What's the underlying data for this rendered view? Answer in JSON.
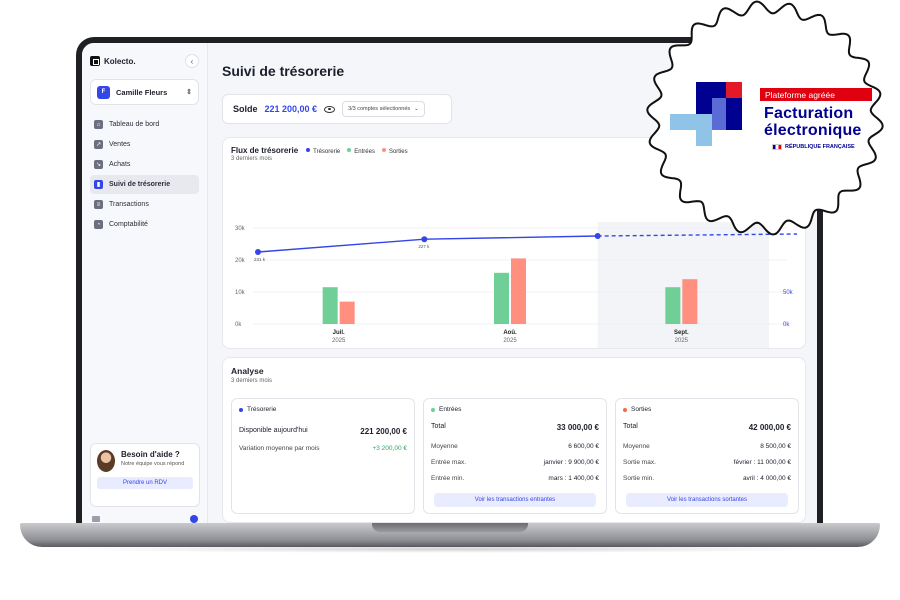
{
  "sidebar": {
    "brand": "Kolecto.",
    "account_initial": "F",
    "account_name": "Camille Fleurs",
    "items": [
      {
        "label": "Tableau de bord",
        "icon": "home-icon"
      },
      {
        "label": "Ventes",
        "icon": "sales-icon"
      },
      {
        "label": "Achats",
        "icon": "purchases-icon"
      },
      {
        "label": "Suivi de trésorerie",
        "icon": "chart-icon",
        "active": true
      },
      {
        "label": "Transactions",
        "icon": "bank-icon"
      },
      {
        "label": "Comptabilité",
        "icon": "accounting-icon"
      }
    ],
    "help": {
      "title": "Besoin d'aide ?",
      "text": "Notre équipe vous répond",
      "button": "Prendre un RDV"
    }
  },
  "main": {
    "title": "Suivi de trésorerie",
    "balance_label": "Solde",
    "balance_value": "221 200,00 €",
    "accounts_select": "3/3 comptes sélectionnés"
  },
  "flux": {
    "title": "Flux de trésorerie",
    "subtitle": "3 derniers mois",
    "legend": [
      {
        "label": "Trésorerie",
        "color": "#3446e8"
      },
      {
        "label": "Entrées",
        "color": "#6fcf97"
      },
      {
        "label": "Sorties",
        "color": "#ff8f7e"
      }
    ]
  },
  "chart_data": {
    "type": "bar",
    "categories": [
      "Juil.",
      "Aoû.",
      "Sept."
    ],
    "category_years": [
      "2025",
      "2025",
      "2025"
    ],
    "y_ticks": [
      "0k",
      "10k",
      "20k",
      "30k"
    ],
    "y2_ticks": [
      "0k",
      "50k"
    ],
    "ylim": [
      0,
      30000
    ],
    "series": [
      {
        "name": "Entrées",
        "color": "#6fcf97",
        "values": [
          11500,
          16000,
          11500
        ]
      },
      {
        "name": "Sorties",
        "color": "#ff8f7e",
        "values": [
          7000,
          20500,
          14000
        ]
      }
    ],
    "line": {
      "name": "Trésorerie",
      "color": "#3446e8",
      "values": [
        22500,
        26500,
        27500
      ],
      "labels": [
        "231 k",
        "227 k",
        ""
      ]
    },
    "forecast_category": "Sept."
  },
  "analyse": {
    "title": "Analyse",
    "subtitle": "3 derniers mois",
    "tresorerie": {
      "title": "Trésorerie",
      "rows": [
        {
          "k": "Disponible aujourd'hui",
          "v": "221 200,00 €"
        },
        {
          "k": "Variation moyenne par mois",
          "v": "+3 200,00 €"
        }
      ]
    },
    "entrees": {
      "title": "Entrées",
      "rows": [
        {
          "k": "Total",
          "v": "33 000,00 €"
        },
        {
          "k": "Moyenne",
          "v": "6 600,00 €"
        },
        {
          "k": "Entrée max.",
          "v": "janvier : 9 900,00 €"
        },
        {
          "k": "Entrée min.",
          "v": "mars : 1 400,00 €"
        }
      ],
      "button": "Voir les transactions entrantes"
    },
    "sorties": {
      "title": "Sorties",
      "rows": [
        {
          "k": "Total",
          "v": "42 000,00 €"
        },
        {
          "k": "Moyenne",
          "v": "8 500,00 €"
        },
        {
          "k": "Sortie max.",
          "v": "février : 11 000,00 €"
        },
        {
          "k": "Sortie min.",
          "v": "avril : 4 000,00 €"
        }
      ],
      "button": "Voir les transactions sortantes"
    }
  },
  "badge": {
    "ribbon": "Plateforme agréée",
    "line1": "Facturation",
    "line2": "électronique",
    "country": "RÉPUBLIQUE FRANÇAISE"
  }
}
